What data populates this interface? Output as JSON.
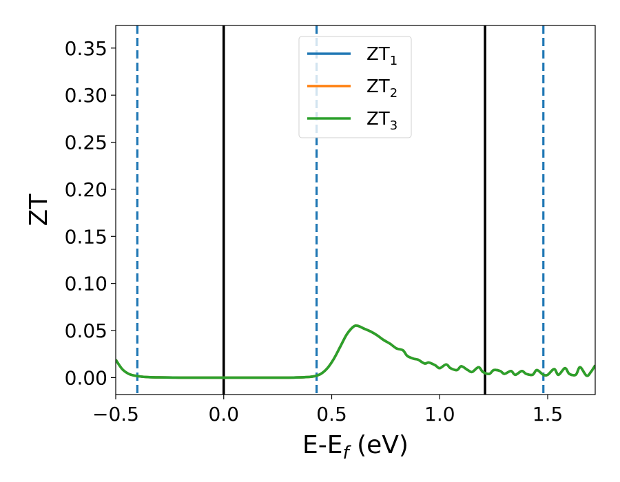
{
  "chart_data": {
    "type": "line",
    "title": "",
    "xlabel": {
      "main": "E-E",
      "sub": "f",
      "unit": " (eV)"
    },
    "ylabel": "ZT",
    "xlim": [
      -0.5,
      1.72
    ],
    "ylim": [
      -0.018,
      0.374
    ],
    "x_ticks": [
      -0.5,
      0.0,
      0.5,
      1.0,
      1.5
    ],
    "x_tick_labels": [
      "−0.5",
      "0.0",
      "0.5",
      "1.0",
      "1.5"
    ],
    "y_ticks": [
      0.0,
      0.05,
      0.1,
      0.15,
      0.2,
      0.25,
      0.3,
      0.35
    ],
    "y_tick_labels": [
      "0.00",
      "0.05",
      "0.10",
      "0.15",
      "0.20",
      "0.25",
      "0.30",
      "0.35"
    ],
    "grid": false,
    "legend_position": "top-center",
    "series": [
      {
        "name": "ZT",
        "name_sub": "1",
        "color": "#1f77b4",
        "x": [
          -0.5,
          -0.47,
          -0.44,
          -0.41,
          -0.38,
          -0.35,
          -0.3,
          -0.2,
          -0.1,
          0.0,
          0.1,
          0.2,
          0.3,
          0.38,
          0.42,
          0.45,
          0.48,
          0.51,
          0.54,
          0.57,
          0.6,
          0.62,
          0.65,
          0.68,
          0.71,
          0.74,
          0.77,
          0.8,
          0.83,
          0.85,
          0.88,
          0.9,
          0.93,
          0.95,
          0.98,
          1.0,
          1.03,
          1.05,
          1.08,
          1.1,
          1.13,
          1.15,
          1.18,
          1.2,
          1.23,
          1.25,
          1.28,
          1.3,
          1.33,
          1.35,
          1.38,
          1.4,
          1.43,
          1.45,
          1.48,
          1.5,
          1.53,
          1.55,
          1.58,
          1.6,
          1.63,
          1.65,
          1.68,
          1.7,
          1.72
        ],
        "y": [
          0.019,
          0.009,
          0.004,
          0.002,
          0.001,
          0.0005,
          0.0002,
          0.0,
          0.0,
          0.0,
          0.0,
          0.0,
          0.0,
          0.0005,
          0.0015,
          0.004,
          0.01,
          0.02,
          0.033,
          0.046,
          0.054,
          0.055,
          0.052,
          0.049,
          0.045,
          0.04,
          0.036,
          0.031,
          0.029,
          0.023,
          0.02,
          0.019,
          0.015,
          0.016,
          0.013,
          0.01,
          0.014,
          0.01,
          0.008,
          0.012,
          0.008,
          0.006,
          0.011,
          0.006,
          0.004,
          0.008,
          0.007,
          0.004,
          0.007,
          0.003,
          0.007,
          0.004,
          0.003,
          0.008,
          0.003,
          0.003,
          0.009,
          0.003,
          0.01,
          0.004,
          0.003,
          0.011,
          0.002,
          0.006,
          0.013
        ]
      },
      {
        "name": "ZT",
        "name_sub": "2",
        "color": "#ff7f0e",
        "x": [
          -0.5,
          -0.47,
          -0.44,
          -0.41,
          -0.38,
          -0.35,
          -0.3,
          -0.2,
          -0.1,
          0.0,
          0.1,
          0.2,
          0.3,
          0.38,
          0.42,
          0.45,
          0.48,
          0.51,
          0.54,
          0.57,
          0.6,
          0.62,
          0.65,
          0.68,
          0.71,
          0.74,
          0.77,
          0.8,
          0.83,
          0.85,
          0.88,
          0.9,
          0.93,
          0.95,
          0.98,
          1.0,
          1.03,
          1.05,
          1.08,
          1.1,
          1.13,
          1.15,
          1.18,
          1.2,
          1.23,
          1.25,
          1.28,
          1.3,
          1.33,
          1.35,
          1.38,
          1.4,
          1.43,
          1.45,
          1.48,
          1.5,
          1.53,
          1.55,
          1.58,
          1.6,
          1.63,
          1.65,
          1.68,
          1.7,
          1.72
        ],
        "y": [
          0.019,
          0.009,
          0.004,
          0.002,
          0.001,
          0.0005,
          0.0002,
          0.0,
          0.0,
          0.0,
          0.0,
          0.0,
          0.0,
          0.0005,
          0.0015,
          0.004,
          0.01,
          0.02,
          0.033,
          0.046,
          0.054,
          0.055,
          0.052,
          0.049,
          0.045,
          0.04,
          0.036,
          0.031,
          0.029,
          0.023,
          0.02,
          0.019,
          0.015,
          0.016,
          0.013,
          0.01,
          0.014,
          0.01,
          0.008,
          0.012,
          0.008,
          0.006,
          0.011,
          0.006,
          0.004,
          0.008,
          0.007,
          0.004,
          0.007,
          0.003,
          0.007,
          0.004,
          0.003,
          0.008,
          0.003,
          0.003,
          0.009,
          0.003,
          0.01,
          0.004,
          0.003,
          0.011,
          0.002,
          0.006,
          0.013
        ]
      },
      {
        "name": "ZT",
        "name_sub": "3",
        "color": "#2ca02c",
        "x": [
          -0.5,
          -0.47,
          -0.44,
          -0.41,
          -0.38,
          -0.35,
          -0.3,
          -0.2,
          -0.1,
          0.0,
          0.1,
          0.2,
          0.3,
          0.38,
          0.42,
          0.45,
          0.48,
          0.51,
          0.54,
          0.57,
          0.6,
          0.62,
          0.65,
          0.68,
          0.71,
          0.74,
          0.77,
          0.8,
          0.83,
          0.85,
          0.88,
          0.9,
          0.93,
          0.95,
          0.98,
          1.0,
          1.03,
          1.05,
          1.08,
          1.1,
          1.13,
          1.15,
          1.18,
          1.2,
          1.23,
          1.25,
          1.28,
          1.3,
          1.33,
          1.35,
          1.38,
          1.4,
          1.43,
          1.45,
          1.48,
          1.5,
          1.53,
          1.55,
          1.58,
          1.6,
          1.63,
          1.65,
          1.68,
          1.7,
          1.72
        ],
        "y": [
          0.019,
          0.009,
          0.004,
          0.002,
          0.001,
          0.0005,
          0.0002,
          0.0,
          0.0,
          0.0,
          0.0,
          0.0,
          0.0,
          0.0005,
          0.0015,
          0.004,
          0.01,
          0.02,
          0.033,
          0.046,
          0.054,
          0.055,
          0.052,
          0.049,
          0.045,
          0.04,
          0.036,
          0.031,
          0.029,
          0.023,
          0.02,
          0.019,
          0.015,
          0.016,
          0.013,
          0.01,
          0.014,
          0.01,
          0.008,
          0.012,
          0.008,
          0.006,
          0.011,
          0.006,
          0.004,
          0.008,
          0.007,
          0.004,
          0.007,
          0.003,
          0.007,
          0.004,
          0.003,
          0.008,
          0.003,
          0.003,
          0.009,
          0.003,
          0.01,
          0.004,
          0.003,
          0.011,
          0.002,
          0.006,
          0.013
        ]
      }
    ],
    "vertical_lines": [
      {
        "x": -0.4,
        "style": "dashed",
        "color": "#1f77b4"
      },
      {
        "x": 0.0,
        "style": "solid",
        "color": "#000000"
      },
      {
        "x": 0.43,
        "style": "dashed",
        "color": "#1f77b4"
      },
      {
        "x": 1.21,
        "style": "solid",
        "color": "#000000"
      },
      {
        "x": 1.48,
        "style": "dashed",
        "color": "#1f77b4"
      }
    ]
  }
}
